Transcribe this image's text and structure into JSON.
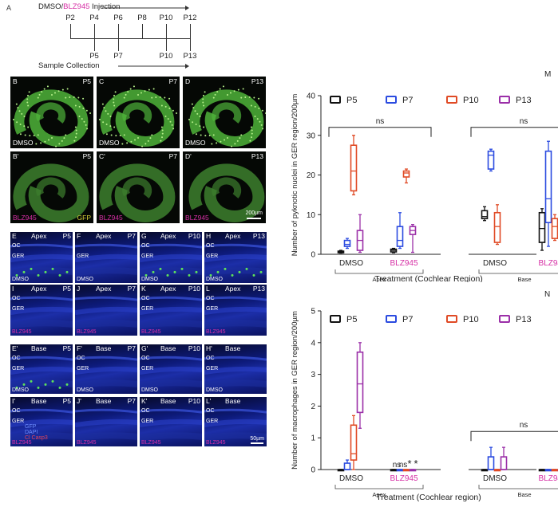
{
  "panel_a": {
    "letter": "A",
    "injection_prefix": "DMSO/",
    "injection_drug": "BLZ945",
    "injection_suffix": " Injection",
    "injection_days": [
      "P2",
      "P4",
      "P6",
      "P8",
      "P10",
      "P12"
    ],
    "collection_days": [
      "P5",
      "P7",
      "P10",
      "P13"
    ],
    "collection_label": "Sample Collection"
  },
  "whole_mounts": [
    {
      "letter": "B",
      "age": "P5",
      "treatment": "DMSO"
    },
    {
      "letter": "C",
      "age": "P7",
      "treatment": "DMSO"
    },
    {
      "letter": "D",
      "age": "P13",
      "treatment": "DMSO"
    },
    {
      "letter": "B'",
      "age": "P5",
      "treatment": "BLZ945",
      "marker": "GFP"
    },
    {
      "letter": "C'",
      "age": "P7",
      "treatment": "BLZ945"
    },
    {
      "letter": "D'",
      "age": "P13",
      "treatment": "BLZ945",
      "scale": "200µm"
    }
  ],
  "sections": [
    {
      "letter": "E",
      "region": "Apex",
      "age": "P5",
      "treatment": "DMSO",
      "oc": "OC",
      "ger": "GER"
    },
    {
      "letter": "F",
      "region": "Apex",
      "age": "P7",
      "treatment": "DMSO",
      "oc": "",
      "ger": "GER"
    },
    {
      "letter": "G",
      "region": "Apex",
      "age": "P10",
      "treatment": "DMSO",
      "oc": "OC",
      "ger": "GER"
    },
    {
      "letter": "H",
      "region": "Apex",
      "age": "P13",
      "treatment": "DMSO",
      "oc": "OC",
      "ger": "GER"
    },
    {
      "letter": "I",
      "region": "Apex",
      "age": "P5",
      "treatment": "BLZ945",
      "oc": "OC",
      "ger": "GER"
    },
    {
      "letter": "J",
      "region": "Apex",
      "age": "P7",
      "treatment": "BLZ945",
      "oc": "",
      "ger": ""
    },
    {
      "letter": "K",
      "region": "Apex",
      "age": "P10",
      "treatment": "BLZ945",
      "oc": "OC",
      "ger": "GER"
    },
    {
      "letter": "L",
      "region": "Apex",
      "age": "P13",
      "treatment": "BLZ945",
      "oc": "OC",
      "ger": "GER"
    },
    {
      "letter": "E'",
      "region": "Base",
      "age": "P5",
      "treatment": "DMSO",
      "oc": "OC",
      "ger": "GER"
    },
    {
      "letter": "F'",
      "region": "Base",
      "age": "P7",
      "treatment": "DMSO",
      "oc": "OC",
      "ger": "GER"
    },
    {
      "letter": "G'",
      "region": "Base",
      "age": "P10",
      "treatment": "DMSO",
      "oc": "OC",
      "ger": "GER"
    },
    {
      "letter": "H'",
      "region": "Base",
      "age": "",
      "treatment": "DMSO",
      "oc": "OC",
      "ger": "GER"
    },
    {
      "letter": "I'",
      "region": "Base",
      "age": "P5",
      "treatment": "BLZ945",
      "oc": "OC",
      "ger": "GER",
      "legend": [
        "GFP",
        "DAPI",
        "Cl Casp3"
      ]
    },
    {
      "letter": "J'",
      "region": "Base",
      "age": "P7",
      "treatment": "BLZ945",
      "oc": "",
      "ger": ""
    },
    {
      "letter": "K'",
      "region": "Base",
      "age": "P10",
      "treatment": "BLZ945",
      "oc": "OC",
      "ger": "GER"
    },
    {
      "letter": "L'",
      "region": "Base",
      "age": "",
      "treatment": "BLZ945",
      "oc": "OC",
      "ger": "GER",
      "scale": "50µm"
    }
  ],
  "colors": {
    "P5": "#111111",
    "P7": "#2b4be0",
    "P10": "#e04a25",
    "P13": "#9b2fa8",
    "drug": "#d62fa5"
  },
  "chart_data": [
    {
      "letter": "M",
      "type": "box",
      "ylabel": "Number of pyknotic nuclei in GER region/200µm",
      "xlabel": "Treatment (Cochlear Region)",
      "ylim": [
        0,
        40
      ],
      "yticks": [
        0,
        10,
        20,
        30,
        40
      ],
      "legend": [
        "P5",
        "P7",
        "P10",
        "P13"
      ],
      "groups": [
        {
          "name": "DMSO",
          "region": "Apex"
        },
        {
          "name": "BLZ945",
          "region": "Apex"
        },
        {
          "name": "DMSO",
          "region": "Base"
        },
        {
          "name": "BLZ945",
          "region": "Base"
        }
      ],
      "regions": [
        "Apex",
        "Base"
      ],
      "significance": [
        {
          "region": "Apex",
          "text": "ns"
        },
        {
          "region": "Base",
          "text": "ns"
        }
      ],
      "series": [
        {
          "name": "P5",
          "boxes": [
            [
              0.3,
              0.4,
              0.6,
              0.8,
              1.0
            ],
            [
              0.4,
              0.6,
              1.0,
              1.3,
              1.5
            ],
            [
              8.5,
              9.0,
              9.5,
              11.0,
              12.0
            ],
            [
              1.0,
              3.0,
              6.5,
              10.5,
              11.5
            ]
          ]
        },
        {
          "name": "P7",
          "boxes": [
            [
              1.5,
              2.0,
              2.5,
              3.5,
              4.0
            ],
            [
              1.5,
              2.0,
              3.5,
              7.0,
              10.5
            ],
            [
              21.0,
              21.5,
              25.0,
              26.0,
              26.5
            ],
            [
              2.0,
              8.0,
              14.0,
              26.0,
              28.5
            ]
          ]
        },
        {
          "name": "P10",
          "boxes": [
            [
              15.0,
              16.0,
              21.0,
              27.5,
              30.0
            ],
            [
              18.0,
              19.5,
              20.5,
              21.0,
              21.5
            ],
            [
              2.5,
              3.0,
              7.0,
              10.5,
              12.5
            ],
            [
              3.5,
              4.0,
              7.0,
              9.0,
              10.0
            ]
          ]
        },
        {
          "name": "P13",
          "boxes": [
            [
              0.5,
              1.0,
              3.5,
              6.0,
              10.0
            ],
            [
              0.5,
              5.0,
              6.0,
              7.0,
              7.5
            ],
            null,
            null
          ]
        }
      ]
    },
    {
      "letter": "N",
      "type": "box",
      "ylabel": "Number of macrophages in GER region/200µm",
      "xlabel": "Treatment (Cochlear region)",
      "ylim": [
        0,
        5
      ],
      "yticks": [
        0,
        1,
        2,
        3,
        4,
        5
      ],
      "legend": [
        "P5",
        "P7",
        "P10",
        "P13"
      ],
      "groups": [
        {
          "name": "DMSO",
          "region": "Apex"
        },
        {
          "name": "BLZ945",
          "region": "Apex"
        },
        {
          "name": "DMSO",
          "region": "Base"
        },
        {
          "name": "BLZ945",
          "region": "Base"
        }
      ],
      "regions": [
        "Apex",
        "Base"
      ],
      "significance": [
        {
          "region": "Base",
          "text": "ns"
        }
      ],
      "markers": [
        "ns",
        "ns",
        "*",
        "*"
      ],
      "series": [
        {
          "name": "P5",
          "boxes": [
            [
              0,
              0,
              0,
              0,
              0
            ],
            [
              0,
              0,
              0,
              0,
              0
            ],
            [
              0,
              0,
              0,
              0,
              0
            ],
            [
              0,
              0,
              0,
              0,
              0
            ]
          ]
        },
        {
          "name": "P7",
          "boxes": [
            [
              0,
              0,
              0,
              0.2,
              0.3
            ],
            [
              0,
              0,
              0,
              0,
              0
            ],
            [
              0,
              0,
              0,
              0.4,
              0.7
            ],
            [
              0,
              0,
              0,
              0,
              0
            ]
          ]
        },
        {
          "name": "P10",
          "boxes": [
            [
              0,
              0.3,
              0.5,
              1.4,
              1.7
            ],
            [
              0,
              0,
              0,
              0,
              0
            ],
            [
              0,
              0,
              0,
              0,
              0
            ],
            [
              0,
              0,
              0,
              0,
              0
            ]
          ]
        },
        {
          "name": "P13",
          "boxes": [
            [
              1.3,
              1.8,
              2.7,
              3.7,
              4.0
            ],
            [
              0,
              0,
              0,
              0,
              0
            ],
            [
              0,
              0,
              0,
              0.4,
              0.7
            ],
            [
              0,
              0,
              0,
              0,
              0
            ]
          ]
        }
      ]
    }
  ]
}
